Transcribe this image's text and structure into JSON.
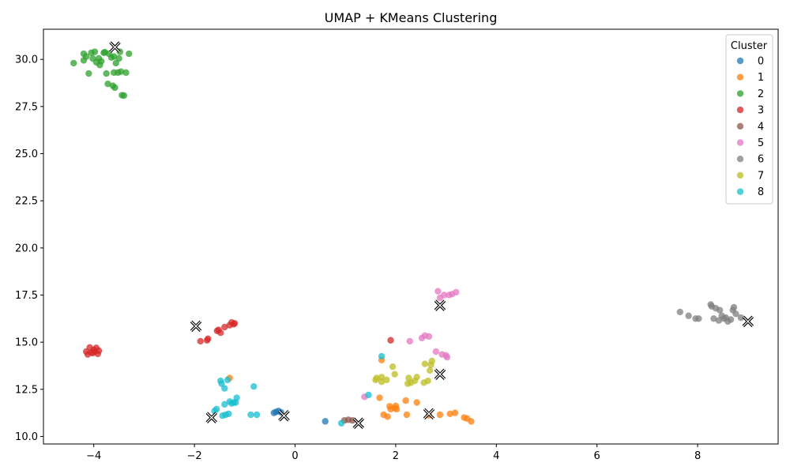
{
  "chart_data": {
    "type": "scatter",
    "title": "UMAP + KMeans Clustering",
    "xlabel": "",
    "ylabel": "",
    "xlim": [
      -5.0,
      9.6
    ],
    "ylim": [
      9.6,
      31.6
    ],
    "xticks": [
      -4,
      -2,
      0,
      2,
      4,
      6,
      8
    ],
    "yticks": [
      10.0,
      12.5,
      15.0,
      17.5,
      20.0,
      22.5,
      25.0,
      27.5,
      30.0
    ],
    "xtick_labels": [
      "−4",
      "−2",
      "0",
      "2",
      "4",
      "6",
      "8"
    ],
    "ytick_labels": [
      "10.0",
      "12.5",
      "15.0",
      "17.5",
      "20.0",
      "22.5",
      "25.0",
      "27.5",
      "30.0"
    ],
    "grid": false,
    "legend": {
      "title": "Cluster",
      "placement": "top-right"
    },
    "series": [
      {
        "name": "0",
        "color": "#1f77b4",
        "points": [
          [
            -0.42,
            11.25
          ],
          [
            -0.38,
            11.3
          ],
          [
            -0.33,
            11.35
          ],
          [
            -0.28,
            11.28
          ],
          [
            0.6,
            10.8
          ]
        ]
      },
      {
        "name": "1",
        "color": "#ff7f0e",
        "points": [
          [
            -1.3,
            13.1
          ],
          [
            1.68,
            12.05
          ],
          [
            1.72,
            14.05
          ],
          [
            1.76,
            11.15
          ],
          [
            1.84,
            11.05
          ],
          [
            1.88,
            11.6
          ],
          [
            1.9,
            11.45
          ],
          [
            1.98,
            11.5
          ],
          [
            2.0,
            11.62
          ],
          [
            2.02,
            11.45
          ],
          [
            2.2,
            11.9
          ],
          [
            2.22,
            11.15
          ],
          [
            2.42,
            11.8
          ],
          [
            2.66,
            11.12
          ],
          [
            2.88,
            11.15
          ],
          [
            3.08,
            11.2
          ],
          [
            3.18,
            11.25
          ],
          [
            3.36,
            11.0
          ],
          [
            3.42,
            10.95
          ],
          [
            3.5,
            10.8
          ]
        ]
      },
      {
        "name": "2",
        "color": "#2ca02c",
        "points": [
          [
            -4.4,
            29.8
          ],
          [
            -4.2,
            30.3
          ],
          [
            -4.2,
            29.95
          ],
          [
            -4.15,
            30.15
          ],
          [
            -4.1,
            29.25
          ],
          [
            -4.05,
            30.35
          ],
          [
            -4.02,
            30.05
          ],
          [
            -3.98,
            30.4
          ],
          [
            -3.95,
            29.85
          ],
          [
            -3.9,
            30.05
          ],
          [
            -3.88,
            29.7
          ],
          [
            -3.85,
            29.9
          ],
          [
            -3.8,
            30.35
          ],
          [
            -3.78,
            30.38
          ],
          [
            -3.75,
            29.25
          ],
          [
            -3.72,
            28.7
          ],
          [
            -3.7,
            30.3
          ],
          [
            -3.65,
            30.1
          ],
          [
            -3.62,
            28.6
          ],
          [
            -3.6,
            30.15
          ],
          [
            -3.6,
            29.3
          ],
          [
            -3.58,
            28.5
          ],
          [
            -3.56,
            29.8
          ],
          [
            -3.52,
            29.3
          ],
          [
            -3.5,
            30.05
          ],
          [
            -3.48,
            30.4
          ],
          [
            -3.46,
            29.35
          ],
          [
            -3.44,
            28.1
          ],
          [
            -3.4,
            28.08
          ],
          [
            -3.36,
            29.3
          ],
          [
            -3.3,
            30.3
          ]
        ]
      },
      {
        "name": "3",
        "color": "#d62728",
        "points": [
          [
            -4.15,
            14.5
          ],
          [
            -4.12,
            14.35
          ],
          [
            -4.08,
            14.72
          ],
          [
            -4.05,
            14.45
          ],
          [
            -4.02,
            14.42
          ],
          [
            -4.0,
            14.6
          ],
          [
            -3.98,
            14.5
          ],
          [
            -3.95,
            14.7
          ],
          [
            -3.92,
            14.38
          ],
          [
            -3.9,
            14.55
          ],
          [
            -1.88,
            15.05
          ],
          [
            -1.75,
            15.1
          ],
          [
            -1.73,
            15.18
          ],
          [
            -1.55,
            15.6
          ],
          [
            -1.52,
            15.65
          ],
          [
            -1.48,
            15.5
          ],
          [
            -1.4,
            15.8
          ],
          [
            -1.3,
            15.9
          ],
          [
            -1.26,
            16.05
          ],
          [
            -1.22,
            15.95
          ],
          [
            -1.2,
            16.0
          ],
          [
            1.9,
            15.1
          ]
        ]
      },
      {
        "name": "4",
        "color": "#8c564b",
        "points": [
          [
            0.98,
            10.85
          ],
          [
            1.06,
            10.88
          ],
          [
            1.14,
            10.85
          ]
        ]
      },
      {
        "name": "5",
        "color": "#e377c2",
        "points": [
          [
            1.38,
            12.1
          ],
          [
            2.28,
            15.05
          ],
          [
            2.52,
            15.22
          ],
          [
            2.58,
            15.35
          ],
          [
            2.66,
            15.3
          ],
          [
            2.8,
            14.5
          ],
          [
            2.84,
            17.7
          ],
          [
            2.88,
            17.35
          ],
          [
            2.92,
            14.35
          ],
          [
            2.96,
            17.5
          ],
          [
            3.0,
            14.3
          ],
          [
            3.02,
            14.2
          ],
          [
            3.06,
            17.5
          ],
          [
            3.12,
            17.55
          ],
          [
            3.2,
            17.65
          ]
        ]
      },
      {
        "name": "6",
        "color": "#7f7f7f",
        "points": [
          [
            7.65,
            16.6
          ],
          [
            7.82,
            16.4
          ],
          [
            7.96,
            16.25
          ],
          [
            8.02,
            16.25
          ],
          [
            8.26,
            17.0
          ],
          [
            8.28,
            16.9
          ],
          [
            8.32,
            16.25
          ],
          [
            8.36,
            16.8
          ],
          [
            8.42,
            16.15
          ],
          [
            8.44,
            16.7
          ],
          [
            8.48,
            16.4
          ],
          [
            8.52,
            16.25
          ],
          [
            8.56,
            16.3
          ],
          [
            8.6,
            16.1
          ],
          [
            8.66,
            16.2
          ],
          [
            8.7,
            16.7
          ],
          [
            8.72,
            16.85
          ],
          [
            8.76,
            16.5
          ],
          [
            8.86,
            16.3
          ]
        ]
      },
      {
        "name": "7",
        "color": "#bcbd22",
        "points": [
          [
            1.6,
            13.0
          ],
          [
            1.62,
            13.1
          ],
          [
            1.72,
            12.9
          ],
          [
            1.72,
            13.15
          ],
          [
            1.82,
            13.0
          ],
          [
            1.94,
            13.7
          ],
          [
            1.98,
            13.3
          ],
          [
            2.24,
            12.8
          ],
          [
            2.26,
            13.1
          ],
          [
            2.3,
            12.85
          ],
          [
            2.38,
            12.95
          ],
          [
            2.42,
            13.15
          ],
          [
            2.56,
            12.85
          ],
          [
            2.58,
            13.85
          ],
          [
            2.64,
            12.95
          ],
          [
            2.68,
            13.5
          ],
          [
            2.7,
            13.8
          ],
          [
            2.72,
            14.0
          ]
        ]
      },
      {
        "name": "8",
        "color": "#17becf",
        "points": [
          [
            -1.6,
            11.35
          ],
          [
            -1.56,
            11.45
          ],
          [
            -1.48,
            12.95
          ],
          [
            -1.46,
            12.8
          ],
          [
            -1.44,
            11.1
          ],
          [
            -1.4,
            12.55
          ],
          [
            -1.4,
            11.7
          ],
          [
            -1.38,
            11.15
          ],
          [
            -1.34,
            13.0
          ],
          [
            -1.32,
            11.2
          ],
          [
            -1.3,
            11.85
          ],
          [
            -1.26,
            11.75
          ],
          [
            -1.22,
            11.8
          ],
          [
            -1.18,
            11.8
          ],
          [
            -1.16,
            12.05
          ],
          [
            -0.88,
            11.15
          ],
          [
            -0.82,
            12.65
          ],
          [
            -0.76,
            11.15
          ],
          [
            0.92,
            10.7
          ],
          [
            1.46,
            12.2
          ],
          [
            1.72,
            14.25
          ]
        ]
      }
    ],
    "centroids": [
      {
        "cluster": "0",
        "x": -0.22,
        "y": 11.1
      },
      {
        "cluster": "1",
        "x": 2.66,
        "y": 11.2
      },
      {
        "cluster": "2",
        "x": -3.58,
        "y": 30.65
      },
      {
        "cluster": "3",
        "x": -1.97,
        "y": 15.85
      },
      {
        "cluster": "4",
        "x": 1.26,
        "y": 10.7
      },
      {
        "cluster": "5",
        "x": 2.88,
        "y": 16.95
      },
      {
        "cluster": "6",
        "x": 9.0,
        "y": 16.1
      },
      {
        "cluster": "7",
        "x": 2.88,
        "y": 13.3
      },
      {
        "cluster": "8",
        "x": -1.66,
        "y": 11.0
      }
    ]
  }
}
